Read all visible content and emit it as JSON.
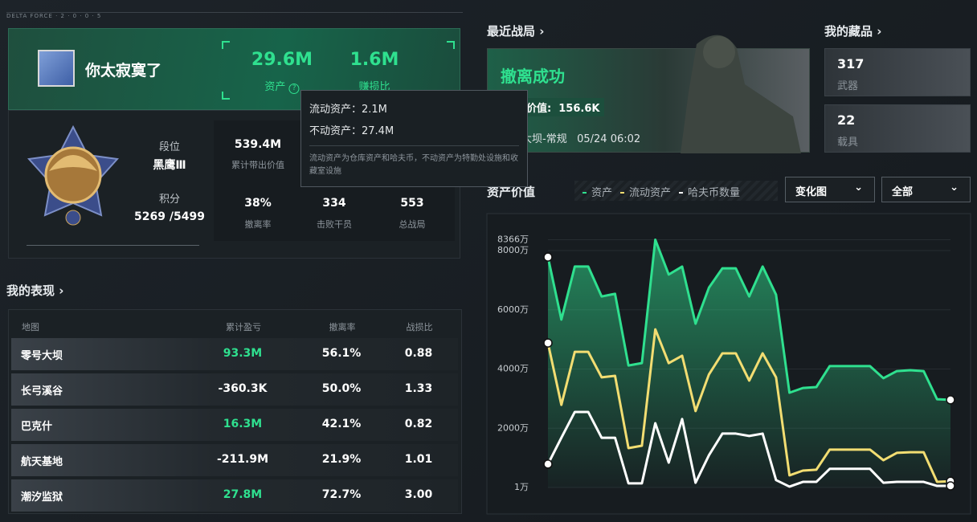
{
  "header": {
    "brand": "DELTA FORCE · 2 · 0 · 0 · 5"
  },
  "profile": {
    "name": "你太寂寞了",
    "assets": {
      "value": "29.6M",
      "label": "资产"
    },
    "profit_ratio": {
      "value": "1.6M",
      "label": "赚损比"
    },
    "rank": {
      "label": "段位",
      "value": "黑鹰Ⅲ"
    },
    "points": {
      "label": "积分",
      "value": "5269 /5499"
    },
    "stats": [
      {
        "value": "539.4M",
        "label": "累计带出价值"
      },
      {
        "value": "38%",
        "label": "撤离率"
      },
      {
        "value": "334",
        "label": "击败干员"
      },
      {
        "value": "553",
        "label": "总战局"
      }
    ]
  },
  "tooltip": {
    "liquid": "流动资产：2.1M",
    "fixed": "不动资产：27.4M",
    "note": "流动资产为仓库资产和哈夫币，不动资产为特勤处设施和收藏室设施"
  },
  "performance": {
    "title": "我的表现",
    "columns": [
      "地图",
      "累计盈亏",
      "撤离率",
      "战损比"
    ],
    "rows": [
      [
        "零号大坝",
        "93.3M",
        "56.1%",
        "0.88"
      ],
      [
        "长弓溪谷",
        "-360.3K",
        "50.0%",
        "1.33"
      ],
      [
        "巴克什",
        "16.3M",
        "42.1%",
        "0.82"
      ],
      [
        "航天基地",
        "-211.9M",
        "21.9%",
        "1.01"
      ],
      [
        "潮汐监狱",
        "27.8M",
        "72.7%",
        "3.00"
      ]
    ]
  },
  "recent": {
    "title": "最近战局",
    "result": "撤离成功",
    "value_label": "带出价值:",
    "value": "156.6K",
    "map": "零号大坝-常规",
    "time": "05/24 06:02"
  },
  "collection": {
    "title": "我的藏品",
    "items": [
      {
        "count": "317",
        "label": "武器"
      },
      {
        "count": "22",
        "label": "载具"
      }
    ]
  },
  "dropdowns": [
    "变化图",
    "全部"
  ],
  "chart_data": {
    "type": "line",
    "title": "资产价值",
    "series": [
      {
        "name": "资产",
        "color": "#2fe08f",
        "values": [
          7780,
          5670,
          7460,
          7460,
          6450,
          6540,
          4120,
          4200,
          8366,
          7190,
          7460,
          5530,
          6750,
          7400,
          7400,
          6450,
          7460,
          6510,
          3200,
          3360,
          3390,
          4100,
          4100,
          4100,
          4100,
          3690,
          3930,
          3960,
          3930,
          2980,
          2960
        ]
      },
      {
        "name": "流动资产",
        "color": "#f2dd72",
        "values": [
          4880,
          2790,
          4580,
          4580,
          3720,
          3770,
          1330,
          1410,
          5340,
          4200,
          4450,
          2580,
          3820,
          4530,
          4530,
          3610,
          4530,
          3720,
          410,
          570,
          600,
          1280,
          1280,
          1280,
          1280,
          920,
          1170,
          1190,
          1190,
          190,
          210
        ]
      },
      {
        "name": "哈夫币数量",
        "color": "#ffffff",
        "values": [
          790,
          1680,
          2550,
          2550,
          1680,
          1680,
          140,
          140,
          2170,
          840,
          2310,
          160,
          1090,
          1820,
          1820,
          1740,
          1820,
          250,
          30,
          190,
          190,
          630,
          630,
          630,
          630,
          160,
          190,
          190,
          190,
          55,
          55
        ]
      }
    ],
    "ylim": [
      1,
      8366
    ],
    "yticks": [
      {
        "value": 1,
        "label": "1万"
      },
      {
        "value": 2000,
        "label": "2000万"
      },
      {
        "value": 4000,
        "label": "4000万"
      },
      {
        "value": 6000,
        "label": "6000万"
      },
      {
        "value": 8000,
        "label": "8000万"
      },
      {
        "value": 8366,
        "label": "8366万"
      }
    ],
    "grid": true
  }
}
